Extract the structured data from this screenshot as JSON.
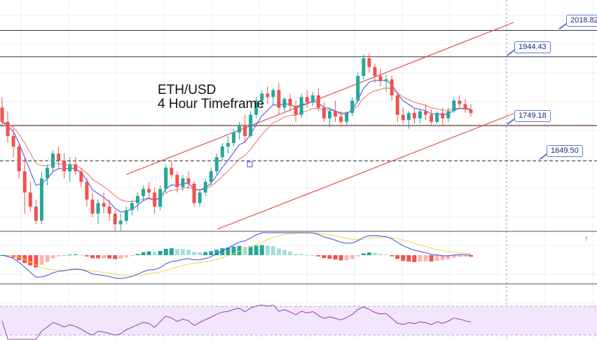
{
  "title": {
    "line1": "ETH/USD",
    "line2": "4 Hour Timeframe"
  },
  "colors": {
    "up": "#26a69a",
    "down": "#ef5350",
    "ema_fast": "#3b4de0",
    "ema_slow": "#ef6f6f",
    "channel": "#d9534f",
    "hline": "#333333",
    "label_border": "#5b7bd5",
    "label_text": "#1e2a78",
    "hist_up_strong": "#26a69a",
    "hist_up_weak": "#a7dcd5",
    "hist_down_strong": "#ef5350",
    "hist_down_weak": "#f7b4b2",
    "macd_line": "#3b4de0",
    "signal_line": "#f2d64b",
    "rsi_line": "#8e44ad",
    "rsi_band": "#f1e6fb"
  },
  "levels": [
    {
      "price": 2018.82,
      "label": "2018.82",
      "style": "solid"
    },
    {
      "price": 1944.43,
      "label": "1944.43",
      "style": "solid"
    },
    {
      "price": 1749.18,
      "label": "1749.18",
      "style": "solid"
    },
    {
      "price": 1649.5,
      "label": "1649.50",
      "style": "dashed"
    }
  ],
  "chart_data": {
    "type": "candlestick",
    "symbol": "ETH/USD",
    "timeframe": "4 Hour",
    "price_range": [
      1450,
      2085
    ],
    "indicators": [
      "EMA fast",
      "EMA slow",
      "MACD",
      "RSI"
    ],
    "candles": [
      [
        1800,
        1830,
        1745,
        1760
      ],
      [
        1760,
        1790,
        1700,
        1720
      ],
      [
        1720,
        1740,
        1660,
        1690
      ],
      [
        1690,
        1700,
        1600,
        1620
      ],
      [
        1620,
        1660,
        1500,
        1560
      ],
      [
        1560,
        1590,
        1505,
        1520
      ],
      [
        1520,
        1540,
        1470,
        1480
      ],
      [
        1480,
        1620,
        1470,
        1600
      ],
      [
        1600,
        1640,
        1580,
        1630
      ],
      [
        1630,
        1680,
        1620,
        1670
      ],
      [
        1670,
        1690,
        1630,
        1650
      ],
      [
        1650,
        1670,
        1600,
        1620
      ],
      [
        1620,
        1660,
        1590,
        1640
      ],
      [
        1640,
        1660,
        1610,
        1620
      ],
      [
        1620,
        1630,
        1575,
        1590
      ],
      [
        1590,
        1600,
        1520,
        1540
      ],
      [
        1540,
        1560,
        1490,
        1500
      ],
      [
        1500,
        1540,
        1470,
        1530
      ],
      [
        1530,
        1560,
        1500,
        1520
      ],
      [
        1520,
        1540,
        1480,
        1500
      ],
      [
        1500,
        1510,
        1450,
        1470
      ],
      [
        1470,
        1500,
        1450,
        1480
      ],
      [
        1480,
        1520,
        1470,
        1510
      ],
      [
        1510,
        1540,
        1495,
        1530
      ],
      [
        1530,
        1560,
        1510,
        1550
      ],
      [
        1550,
        1580,
        1535,
        1570
      ],
      [
        1570,
        1590,
        1540,
        1560
      ],
      [
        1560,
        1575,
        1500,
        1520
      ],
      [
        1520,
        1580,
        1510,
        1570
      ],
      [
        1570,
        1640,
        1560,
        1630
      ],
      [
        1630,
        1650,
        1600,
        1610
      ],
      [
        1610,
        1620,
        1560,
        1575
      ],
      [
        1575,
        1610,
        1565,
        1600
      ],
      [
        1600,
        1620,
        1570,
        1585
      ],
      [
        1585,
        1590,
        1520,
        1530
      ],
      [
        1530,
        1570,
        1520,
        1560
      ],
      [
        1560,
        1600,
        1550,
        1590
      ],
      [
        1590,
        1630,
        1580,
        1620
      ],
      [
        1620,
        1670,
        1610,
        1660
      ],
      [
        1660,
        1700,
        1650,
        1690
      ],
      [
        1690,
        1720,
        1670,
        1700
      ],
      [
        1700,
        1740,
        1690,
        1730
      ],
      [
        1730,
        1760,
        1710,
        1750
      ],
      [
        1750,
        1780,
        1700,
        1720
      ],
      [
        1720,
        1790,
        1715,
        1780
      ],
      [
        1780,
        1830,
        1770,
        1820
      ],
      [
        1820,
        1850,
        1800,
        1840
      ],
      [
        1840,
        1860,
        1810,
        1830
      ],
      [
        1830,
        1855,
        1805,
        1850
      ],
      [
        1850,
        1870,
        1780,
        1800
      ],
      [
        1800,
        1830,
        1790,
        1825
      ],
      [
        1825,
        1840,
        1790,
        1805
      ],
      [
        1805,
        1820,
        1760,
        1780
      ],
      [
        1780,
        1840,
        1770,
        1830
      ],
      [
        1830,
        1850,
        1800,
        1815
      ],
      [
        1815,
        1845,
        1805,
        1835
      ],
      [
        1835,
        1855,
        1790,
        1800
      ],
      [
        1800,
        1815,
        1760,
        1770
      ],
      [
        1770,
        1800,
        1745,
        1790
      ],
      [
        1790,
        1820,
        1760,
        1775
      ],
      [
        1775,
        1790,
        1745,
        1760
      ],
      [
        1760,
        1790,
        1750,
        1785
      ],
      [
        1785,
        1830,
        1775,
        1820
      ],
      [
        1820,
        1900,
        1815,
        1890
      ],
      [
        1890,
        1950,
        1880,
        1940
      ],
      [
        1940,
        1955,
        1900,
        1915
      ],
      [
        1915,
        1925,
        1870,
        1890
      ],
      [
        1890,
        1910,
        1860,
        1875
      ],
      [
        1875,
        1895,
        1845,
        1880
      ],
      [
        1880,
        1890,
        1820,
        1835
      ],
      [
        1835,
        1845,
        1760,
        1780
      ],
      [
        1780,
        1800,
        1755,
        1765
      ],
      [
        1765,
        1790,
        1740,
        1785
      ],
      [
        1785,
        1800,
        1755,
        1770
      ],
      [
        1770,
        1795,
        1755,
        1790
      ],
      [
        1790,
        1810,
        1765,
        1780
      ],
      [
        1780,
        1795,
        1750,
        1760
      ],
      [
        1760,
        1790,
        1755,
        1785
      ],
      [
        1785,
        1800,
        1750,
        1770
      ],
      [
        1770,
        1800,
        1760,
        1790
      ],
      [
        1790,
        1830,
        1785,
        1820
      ],
      [
        1820,
        1835,
        1800,
        1810
      ],
      [
        1810,
        1825,
        1785,
        1795
      ],
      [
        1795,
        1810,
        1775,
        1785
      ]
    ],
    "horizontal_levels": [
      2018.82,
      1944.43,
      1749.18,
      1649.5
    ]
  }
}
